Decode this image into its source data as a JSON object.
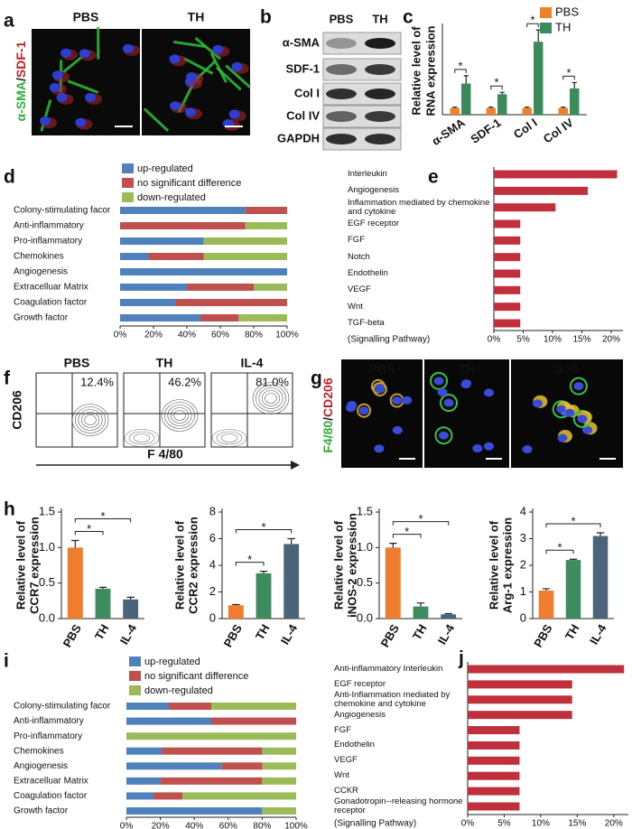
{
  "figure": {
    "a": {
      "panel": "a",
      "images": [
        "PBS",
        "TH"
      ],
      "channel_label": [
        "α-SMA",
        "/",
        "SDF-1"
      ]
    },
    "b": {
      "panel": "b",
      "lanes": [
        "PBS",
        "TH"
      ],
      "proteins": [
        "α-SMA",
        "SDF-1",
        "Col I",
        "Col IV",
        "GAPDH"
      ]
    },
    "f": {
      "panel": "f",
      "y_label": "CD206",
      "x_label": "F 4/80",
      "plots": [
        {
          "name": "PBS",
          "percent": "12.4%"
        },
        {
          "name": "TH",
          "percent": "46.2%"
        },
        {
          "name": "IL-4",
          "percent": "81.0%"
        }
      ]
    },
    "g": {
      "panel": "g",
      "images": [
        "PBS",
        "TH",
        "IL-4"
      ],
      "channel_label": [
        "F4/80",
        "/",
        "CD206"
      ]
    }
  },
  "chart_data": [
    {
      "type": "bar",
      "panel": "c",
      "y_label": [
        "Relative level of",
        "RNA expression"
      ],
      "categories": [
        "α-SMA",
        "SDF-1",
        "Col I",
        "Col IV"
      ],
      "series": [
        {
          "name": "PBS",
          "color": "#f07f2a",
          "values": [
            0.35,
            0.35,
            0.35,
            0.35
          ],
          "errors": [
            0.04,
            0.04,
            0.04,
            0.04
          ]
        },
        {
          "name": "TH",
          "color": "#3b8a5a",
          "values": [
            1.6,
            1.05,
            3.75,
            1.35
          ],
          "errors": [
            0.4,
            0.1,
            0.6,
            0.3
          ]
        }
      ],
      "ylim": [
        0,
        4.5
      ],
      "annotations": [
        "*",
        "*",
        "*",
        "*"
      ],
      "legend": "upper right"
    },
    {
      "type": "stacked_barh",
      "panel": "d",
      "categories": [
        "Colony-stimulating facor",
        "Anti-inflammatory",
        "Pro-inflammatory",
        "Chemokines",
        "Angiogenesis",
        "Extracelluar Matrix",
        "Coagulation factor",
        "Growth factor"
      ],
      "series": [
        {
          "name": "up-regulated",
          "color": "#4f81bd",
          "values": [
            75,
            0,
            50,
            17,
            100,
            40,
            33,
            48
          ]
        },
        {
          "name": "no significant difference",
          "color": "#c0504d",
          "values": [
            25,
            75,
            0,
            33,
            0,
            40,
            67,
            23
          ]
        },
        {
          "name": "down-regulated",
          "color": "#9bbb59",
          "values": [
            0,
            25,
            50,
            50,
            0,
            20,
            0,
            29
          ]
        }
      ],
      "xlim": [
        0,
        100
      ],
      "xticks": [
        {
          "value": 0,
          "label": "0%"
        },
        {
          "value": 20,
          "label": "20%"
        },
        {
          "value": 40,
          "label": "40%"
        },
        {
          "value": 60,
          "label": "60%"
        },
        {
          "value": 80,
          "label": "80%"
        },
        {
          "value": 100,
          "label": "100%"
        }
      ],
      "legend": "upper left"
    },
    {
      "type": "barh",
      "panel": "e",
      "y_label": "(Signalling Pathway)",
      "categories": [
        "Interleukin",
        "Angiogenesis",
        "Inflammation mediated by chemokine and cytokine",
        "EGF receptor",
        "FGF",
        "Notch",
        "Endothelin",
        "VEGF",
        "Wnt",
        "TGF-beta"
      ],
      "values": [
        21,
        16,
        10.5,
        4.5,
        4.5,
        4.5,
        4.5,
        4.5,
        4.5,
        4.5
      ],
      "color": "#c0303c",
      "xlim": [
        0,
        22
      ],
      "xticks": [
        {
          "value": 0,
          "label": "0%"
        },
        {
          "value": 5,
          "label": "5%"
        },
        {
          "value": 10,
          "label": "10%"
        },
        {
          "value": 15,
          "label": "15%"
        },
        {
          "value": 20,
          "label": "20%"
        }
      ]
    },
    {
      "type": "bar",
      "panel": "h",
      "y_label": [
        "Relative level of",
        "CCR7 expression"
      ],
      "categories": [
        "PBS",
        "TH",
        "IL-4"
      ],
      "values": [
        1.0,
        0.42,
        0.27
      ],
      "errors": [
        0.1,
        0.02,
        0.03
      ],
      "colors": [
        "#ef7d2d",
        "#3d8b5e",
        "#4b6479"
      ],
      "ylim": [
        0,
        1.5
      ],
      "yticks": [
        {
          "value": 0,
          "label": "0.0"
        },
        0.5,
        {
          "value": 1,
          "label": "1.0"
        },
        1.5
      ],
      "annotations": [
        "*",
        "*"
      ]
    },
    {
      "type": "bar",
      "y_label": [
        "Relative level of",
        "CCR2 expression"
      ],
      "categories": [
        "PBS",
        "TH",
        "IL-4"
      ],
      "values": [
        1.0,
        3.4,
        5.6
      ],
      "errors": [
        0.05,
        0.15,
        0.4
      ],
      "colors": [
        "#ef7d2d",
        "#3d8b5e",
        "#4b6479"
      ],
      "ylim": [
        0,
        8
      ],
      "yticks": [
        0,
        2,
        4,
        6,
        8
      ],
      "annotations": [
        "*",
        "*"
      ]
    },
    {
      "type": "bar",
      "y_label": [
        "Relative level of",
        "iNOS-2 expression"
      ],
      "categories": [
        "PBS",
        "TH",
        "IL-4"
      ],
      "values": [
        1.0,
        0.17,
        0.06
      ],
      "errors": [
        0.06,
        0.05,
        0.01
      ],
      "colors": [
        "#ef7d2d",
        "#3d8b5e",
        "#4b6479"
      ],
      "ylim": [
        0,
        1.5
      ],
      "yticks": [
        {
          "value": 0,
          "label": "0.0"
        },
        0.5,
        {
          "value": 1,
          "label": "1.0"
        },
        1.5
      ],
      "annotations": [
        "*",
        "*"
      ]
    },
    {
      "type": "bar",
      "y_label": [
        "Relative level of",
        "Arg-1 expression"
      ],
      "categories": [
        "PBS",
        "TH",
        "IL-4"
      ],
      "values": [
        1.05,
        2.2,
        3.1
      ],
      "errors": [
        0.07,
        0.03,
        0.12
      ],
      "colors": [
        "#ef7d2d",
        "#3d8b5e",
        "#4b6479"
      ],
      "ylim": [
        0,
        4
      ],
      "yticks": [
        0,
        1,
        2,
        3,
        4
      ],
      "annotations": [
        "*",
        "*"
      ]
    },
    {
      "type": "stacked_barh",
      "panel": "i",
      "categories": [
        "Colony-stimulating facor",
        "Anti-inflammatory",
        "Pro-inflammatory",
        "Chemokines",
        "Angiogenesis",
        "Extracelluar Matrix",
        "Coagulation factor",
        "Growth factor"
      ],
      "series": [
        {
          "name": "up-regulated",
          "color": "#4f81bd",
          "values": [
            25,
            50,
            0,
            21,
            56,
            20,
            16,
            80
          ]
        },
        {
          "name": "no significant difference",
          "color": "#c0504d",
          "values": [
            25,
            50,
            0,
            59,
            24,
            60,
            17,
            0
          ]
        },
        {
          "name": "down-regulated",
          "color": "#9bbb59",
          "values": [
            50,
            0,
            100,
            20,
            20,
            20,
            67,
            20
          ]
        }
      ],
      "xlim": [
        0,
        100
      ],
      "xticks": [
        {
          "value": 0,
          "label": "0%"
        },
        {
          "value": 20,
          "label": "20%"
        },
        {
          "value": 40,
          "label": "40%"
        },
        {
          "value": 60,
          "label": "60%"
        },
        {
          "value": 80,
          "label": "80%"
        },
        {
          "value": 100,
          "label": "100%"
        }
      ],
      "legend": "upper left"
    },
    {
      "type": "barh",
      "panel": "j",
      "y_label": "(Signalling Pathway)",
      "categories": [
        "Anti-inflammatory Interleukin",
        "EGF receptor",
        "Anti-Inflammation mediated by chemokine and cytokine",
        "Angiogenesis",
        "FGF",
        "Endothelin",
        "VEGF",
        "Wnt",
        "CCKR",
        "Gonadotropin--releasing hormone receptor"
      ],
      "values": [
        21.4,
        14.3,
        14.3,
        14.3,
        7.1,
        7.1,
        7.1,
        7.1,
        7.1,
        7.1
      ],
      "color": "#c0303c",
      "xlim": [
        0,
        22
      ],
      "xticks": [
        {
          "value": 0,
          "label": "0%"
        },
        {
          "value": 5,
          "label": "5%"
        },
        {
          "value": 10,
          "label": "10%"
        },
        {
          "value": 15,
          "label": "15%"
        },
        {
          "value": 20,
          "label": "20%"
        }
      ]
    }
  ]
}
